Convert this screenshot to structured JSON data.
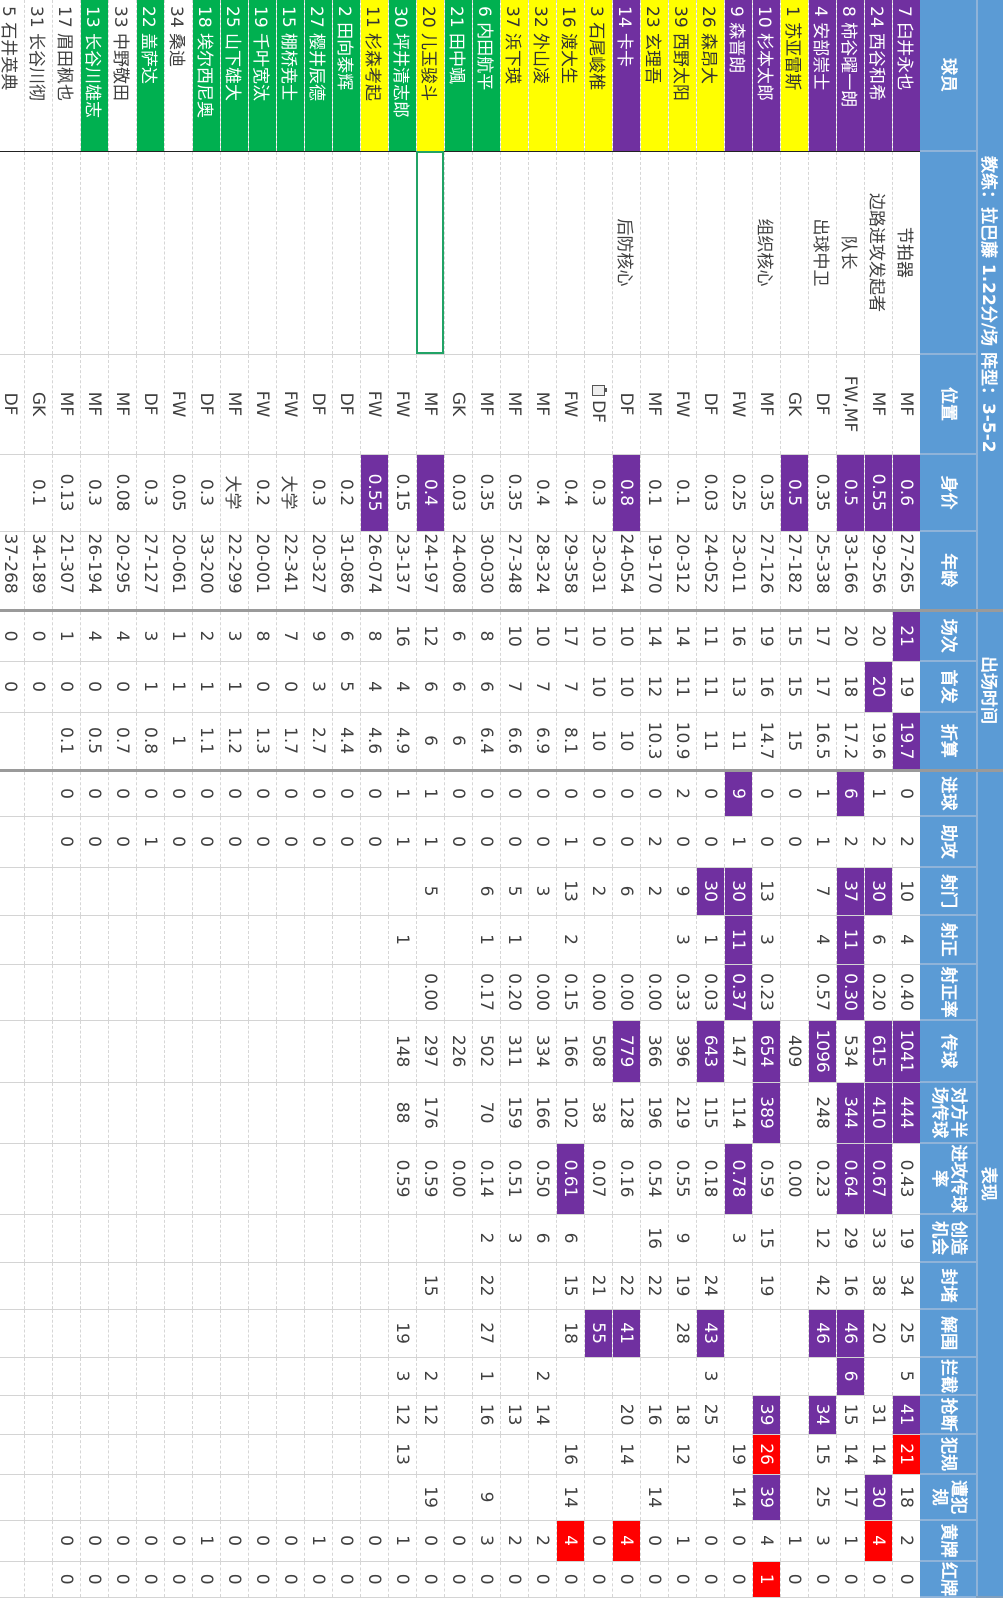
{
  "title": "教练：拉巴藤 1.22分/场 阵型：3-5-2",
  "groups": {
    "appearance": "出场时间",
    "performance": "表现"
  },
  "columns": [
    "球员",
    "",
    "位置",
    "身价",
    "年龄",
    "场次",
    "首发",
    "折算",
    "进球",
    "助攻",
    "射门",
    "射正",
    "射正率",
    "传球",
    "对方半场传球",
    "进攻传球率",
    "创造机会",
    "封堵",
    "解围",
    "拦截",
    "抢断",
    "犯规",
    "遭犯规",
    "黄牌",
    "红牌"
  ],
  "colors": {
    "header": "#5b9bd5",
    "purple": "#7030a0",
    "yellow": "#ffff00",
    "green": "#00b050",
    "red": "#ff0000",
    "selection": "#21a366"
  },
  "selected_cell": {
    "row": 17,
    "col": 1
  },
  "players": [
    {
      "fill": "purple",
      "purple": [
        3,
        5,
        7,
        13,
        14,
        20
      ],
      "red": [
        21
      ],
      "cells": [
        "7 臼井永也",
        "节拍器",
        "MF",
        "0.6",
        "27-265",
        "21",
        "19",
        "19.7",
        "0",
        "2",
        "10",
        "4",
        "0.40",
        "1041",
        "444",
        "0.43",
        "19",
        "34",
        "25",
        "5",
        "41",
        "21",
        "18",
        "2",
        "0"
      ]
    },
    {
      "fill": "purple",
      "purple": [
        3,
        6,
        10,
        13,
        14,
        15,
        22
      ],
      "red": [
        23
      ],
      "cells": [
        "24 西谷和希",
        "边路进攻发起者",
        "MF",
        "0.55",
        "29-256",
        "20",
        "20",
        "19.6",
        "1",
        "2",
        "30",
        "6",
        "0.20",
        "615",
        "410",
        "0.67",
        "33",
        "38",
        "20",
        "",
        "31",
        "14",
        "30",
        "4",
        "0"
      ]
    },
    {
      "fill": "purple",
      "purple": [
        3,
        8,
        10,
        11,
        12,
        14,
        15,
        18,
        19
      ],
      "red": [],
      "cells": [
        "8 柿谷曜一朗",
        "队长",
        "FW,MF",
        "0.5",
        "33-166",
        "20",
        "18",
        "17.2",
        "6",
        "2",
        "37",
        "11",
        "0.30",
        "534",
        "344",
        "0.64",
        "29",
        "16",
        "46",
        "6",
        "15",
        "14",
        "17",
        "1",
        "0"
      ]
    },
    {
      "fill": "purple",
      "purple": [
        13,
        18,
        20
      ],
      "red": [],
      "cells": [
        "4 安部崇士",
        "出球中卫",
        "DF",
        "0.35",
        "25-338",
        "17",
        "17",
        "16.5",
        "1",
        "1",
        "7",
        "4",
        "0.57",
        "1096",
        "248",
        "0.23",
        "12",
        "42",
        "46",
        "",
        "34",
        "15",
        "25",
        "3",
        "0"
      ]
    },
    {
      "fill": "yellow",
      "purple": [
        3
      ],
      "red": [],
      "cells": [
        "1 苏亚雷斯",
        "",
        "GK",
        "0.5",
        "27-182",
        "15",
        "15",
        "15",
        "0",
        "0",
        "",
        "",
        "",
        "409",
        "",
        "0.00",
        "",
        "",
        "",
        "",
        "",
        "",
        "",
        "1",
        "0"
      ]
    },
    {
      "fill": "purple",
      "purple": [
        13,
        14,
        20,
        22
      ],
      "red": [
        21,
        24
      ],
      "cells": [
        "10 杉本太郎",
        "组织核心",
        "MF",
        "0.35",
        "27-126",
        "19",
        "16",
        "14.7",
        "0",
        "0",
        "13",
        "3",
        "0.23",
        "654",
        "389",
        "0.59",
        "15",
        "19",
        "",
        "",
        "39",
        "26",
        "39",
        "4",
        "1"
      ]
    },
    {
      "fill": "purple",
      "purple": [
        8,
        10,
        11,
        12,
        15
      ],
      "red": [],
      "cells": [
        "9 森晋朗",
        "",
        "FW",
        "0.25",
        "23-011",
        "16",
        "13",
        "11",
        "9",
        "1",
        "30",
        "11",
        "0.37",
        "147",
        "114",
        "0.78",
        "3",
        "",
        "",
        "",
        "",
        "19",
        "14",
        "0",
        "0"
      ]
    },
    {
      "fill": "yellow",
      "purple": [
        10,
        13,
        18
      ],
      "red": [],
      "cells": [
        "26 森昂大",
        "",
        "DF",
        "0.03",
        "24-052",
        "11",
        "11",
        "11",
        "0",
        "0",
        "30",
        "1",
        "0.03",
        "643",
        "115",
        "0.18",
        "",
        "24",
        "43",
        "3",
        "25",
        "",
        "",
        "0",
        "0"
      ]
    },
    {
      "fill": "yellow",
      "purple": [],
      "red": [],
      "cells": [
        "39 西野太阳",
        "",
        "FW",
        "0.1",
        "20-312",
        "14",
        "11",
        "10.9",
        "2",
        "0",
        "9",
        "3",
        "0.33",
        "396",
        "219",
        "0.55",
        "9",
        "19",
        "28",
        "",
        "18",
        "12",
        "",
        "1",
        "0"
      ]
    },
    {
      "fill": "yellow",
      "purple": [],
      "red": [],
      "cells": [
        "23 玄理吾",
        "",
        "MF",
        "0.1",
        "19-170",
        "14",
        "12",
        "10.3",
        "0",
        "2",
        "2",
        "",
        "0.00",
        "366",
        "196",
        "0.54",
        "16",
        "22",
        "",
        "",
        "16",
        "",
        "14",
        "0",
        "0"
      ]
    },
    {
      "fill": "purple",
      "purple": [
        3,
        13,
        18
      ],
      "red": [
        23
      ],
      "cells": [
        "14 卡卡",
        "后防核心",
        "DF",
        "0.8",
        "24-054",
        "10",
        "10",
        "10",
        "0",
        "0",
        "6",
        "",
        "0.00",
        "779",
        "128",
        "0.16",
        "",
        "22",
        "41",
        "",
        "20",
        "14",
        "",
        "4",
        "0"
      ]
    },
    {
      "fill": "yellow",
      "purple": [
        18
      ],
      "red": [],
      "paste_icon": true,
      "cells": [
        "3 石尾峻椎",
        "",
        "DF",
        "0.3",
        "23-031",
        "10",
        "10",
        "10",
        "0",
        "0",
        "2",
        "",
        "0.00",
        "508",
        "38",
        "0.07",
        "",
        "21",
        "55",
        "",
        "",
        "",
        "",
        "0",
        "0"
      ]
    },
    {
      "fill": "yellow",
      "purple": [
        15
      ],
      "red": [
        23
      ],
      "cells": [
        "16 渡大生",
        "",
        "FW",
        "0.4",
        "29-358",
        "17",
        "7",
        "8.1",
        "0",
        "1",
        "13",
        "2",
        "0.15",
        "166",
        "102",
        "0.61",
        "6",
        "15",
        "18",
        "",
        "",
        "16",
        "14",
        "4",
        "0"
      ]
    },
    {
      "fill": "yellow",
      "purple": [],
      "red": [],
      "cells": [
        "32 外山凌",
        "",
        "MF",
        "0.4",
        "28-324",
        "10",
        "7",
        "6.9",
        "0",
        "0",
        "3",
        "",
        "0.00",
        "334",
        "166",
        "0.50",
        "6",
        "",
        "",
        "2",
        "14",
        "",
        "",
        "2",
        "0"
      ]
    },
    {
      "fill": "yellow",
      "purple": [],
      "red": [],
      "cells": [
        "37 浜下瑛",
        "",
        "MF",
        "0.35",
        "27-348",
        "10",
        "7",
        "6.6",
        "0",
        "0",
        "5",
        "1",
        "0.20",
        "311",
        "159",
        "0.51",
        "3",
        "",
        "",
        "",
        "13",
        "",
        "",
        "2",
        "0"
      ]
    },
    {
      "fill": "green",
      "purple": [],
      "red": [],
      "cells": [
        "6 内田航平",
        "",
        "MF",
        "0.35",
        "30-030",
        "8",
        "6",
        "6.4",
        "0",
        "0",
        "6",
        "1",
        "0.17",
        "502",
        "70",
        "0.14",
        "2",
        "22",
        "27",
        "1",
        "16",
        "",
        "9",
        "3",
        "0"
      ]
    },
    {
      "fill": "green",
      "purple": [],
      "red": [],
      "cells": [
        "21 田中颯",
        "",
        "GK",
        "0.03",
        "24-008",
        "6",
        "6",
        "6",
        "0",
        "0",
        "",
        "",
        "",
        "226",
        "",
        "0.00",
        "",
        "",
        "",
        "",
        "",
        "",
        "",
        "0",
        "0"
      ]
    },
    {
      "fill": "yellow",
      "purple": [
        3
      ],
      "red": [],
      "cells": [
        "20 儿玉骏斗",
        "",
        "MF",
        "0.4",
        "24-197",
        "12",
        "6",
        "6",
        "1",
        "1",
        "5",
        "",
        "0.00",
        "297",
        "176",
        "0.59",
        "",
        "15",
        "",
        "2",
        "12",
        "",
        "19",
        "0",
        "0"
      ]
    },
    {
      "fill": "green",
      "purple": [],
      "red": [],
      "cells": [
        "30 坪井清志郎",
        "",
        "FW",
        "0.15",
        "23-137",
        "16",
        "4",
        "4.9",
        "1",
        "1",
        "",
        "1",
        "",
        "148",
        "88",
        "0.59",
        "",
        "",
        "19",
        "3",
        "12",
        "13",
        "",
        "1",
        "0"
      ]
    },
    {
      "fill": "yellow",
      "purple": [
        3
      ],
      "red": [],
      "cells": [
        "11 杉森考起",
        "",
        "FW",
        "0.55",
        "26-074",
        "8",
        "4",
        "4.6",
        "0",
        "0",
        "",
        "",
        "",
        "",
        "",
        "",
        "",
        "",
        "",
        "",
        "",
        "",
        "",
        "0",
        "0"
      ]
    },
    {
      "fill": "green",
      "purple": [],
      "red": [],
      "cells": [
        "2 田向泰辉",
        "",
        "DF",
        "0.2",
        "31-086",
        "6",
        "5",
        "4.4",
        "0",
        "0",
        "",
        "",
        "",
        "",
        "",
        "",
        "",
        "",
        "",
        "",
        "",
        "",
        "",
        "0",
        "0"
      ]
    },
    {
      "fill": "green",
      "purple": [],
      "red": [],
      "cells": [
        "27 樱井辰德",
        "",
        "DF",
        "0.3",
        "20-327",
        "9",
        "3",
        "2.7",
        "0",
        "0",
        "",
        "",
        "",
        "",
        "",
        "",
        "",
        "",
        "",
        "",
        "",
        "",
        "",
        "1",
        "0"
      ]
    },
    {
      "fill": "green",
      "purple": [],
      "red": [],
      "cells": [
        "15 棚桥尭士",
        "",
        "FW",
        "大学",
        "22-341",
        "7",
        "0",
        "1.7",
        "0",
        "0",
        "",
        "",
        "",
        "",
        "",
        "",
        "",
        "",
        "",
        "",
        "",
        "",
        "",
        "0",
        "0"
      ]
    },
    {
      "fill": "green",
      "purple": [],
      "red": [],
      "cells": [
        "19 千叶宽汰",
        "",
        "FW",
        "0.2",
        "20-001",
        "8",
        "0",
        "1.3",
        "0",
        "0",
        "",
        "",
        "",
        "",
        "",
        "",
        "",
        "",
        "",
        "",
        "",
        "",
        "",
        "0",
        "0"
      ]
    },
    {
      "fill": "green",
      "purple": [],
      "red": [],
      "cells": [
        "25 山下雄大",
        "",
        "MF",
        "大学",
        "22-299",
        "3",
        "1",
        "1.2",
        "0",
        "0",
        "",
        "",
        "",
        "",
        "",
        "",
        "",
        "",
        "",
        "",
        "",
        "",
        "",
        "0",
        "0"
      ]
    },
    {
      "fill": "green",
      "purple": [],
      "red": [],
      "cells": [
        "18 埃尔西尼奥",
        "",
        "DF",
        "0.3",
        "33-200",
        "2",
        "1",
        "1.1",
        "0",
        "0",
        "",
        "",
        "",
        "",
        "",
        "",
        "",
        "",
        "",
        "",
        "",
        "",
        "",
        "1",
        "0"
      ]
    },
    {
      "fill": "white",
      "purple": [],
      "red": [],
      "cells": [
        "34 桑迪",
        "",
        "FW",
        "0.05",
        "20-061",
        "1",
        "1",
        "1",
        "0",
        "0",
        "",
        "",
        "",
        "",
        "",
        "",
        "",
        "",
        "",
        "",
        "",
        "",
        "",
        "0",
        "0"
      ]
    },
    {
      "fill": "green",
      "purple": [],
      "red": [],
      "cells": [
        "22 盖萨达",
        "",
        "DF",
        "0.3",
        "27-127",
        "3",
        "1",
        "0.8",
        "0",
        "1",
        "",
        "",
        "",
        "",
        "",
        "",
        "",
        "",
        "",
        "",
        "",
        "",
        "",
        "0",
        "0"
      ]
    },
    {
      "fill": "white",
      "purple": [],
      "red": [],
      "cells": [
        "33 中野敬田",
        "",
        "MF",
        "0.08",
        "20-295",
        "4",
        "0",
        "0.7",
        "0",
        "0",
        "",
        "",
        "",
        "",
        "",
        "",
        "",
        "",
        "",
        "",
        "",
        "",
        "",
        "0",
        "0"
      ]
    },
    {
      "fill": "green",
      "purple": [],
      "red": [],
      "cells": [
        "13 长谷川雄志",
        "",
        "MF",
        "0.3",
        "26-194",
        "4",
        "0",
        "0.5",
        "0",
        "0",
        "",
        "",
        "",
        "",
        "",
        "",
        "",
        "",
        "",
        "",
        "",
        "",
        "",
        "0",
        "0"
      ]
    },
    {
      "fill": "white",
      "purple": [],
      "red": [],
      "cells": [
        "17 眉田枫也",
        "",
        "MF",
        "0.13",
        "21-307",
        "1",
        "0",
        "0.1",
        "0",
        "0",
        "",
        "",
        "",
        "",
        "",
        "",
        "",
        "",
        "",
        "",
        "",
        "",
        "",
        "0",
        "0"
      ]
    },
    {
      "fill": "white",
      "purple": [],
      "red": [],
      "cells": [
        "31 长谷川彻",
        "",
        "GK",
        "0.1",
        "34-189",
        "0",
        "0",
        "",
        "",
        "",
        "",
        "",
        "",
        "",
        "",
        "",
        "",
        "",
        "",
        "",
        "",
        "",
        "",
        "",
        ""
      ]
    },
    {
      "fill": "white",
      "purple": [],
      "red": [],
      "cells": [
        "5 石井英典",
        "",
        "DF",
        "",
        "37-268",
        "0",
        "0",
        "",
        "",
        "",
        "",
        "",
        "",
        "",
        "",
        "",
        "",
        "",
        "",
        "",
        "",
        "",
        "",
        "",
        ""
      ]
    }
  ]
}
